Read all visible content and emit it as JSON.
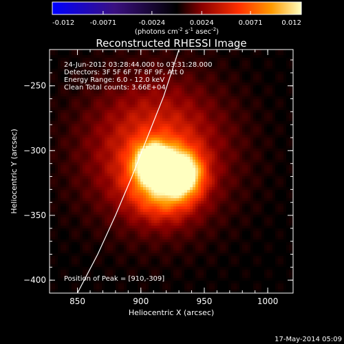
{
  "chart_data": {
    "type": "heatmap",
    "title": "Reconstructed RHESSI Image",
    "xlabel": "Heliocentric X (arcsec)",
    "ylabel": "Heliocentric Y (arcsec)",
    "xlim": [
      828,
      1020
    ],
    "ylim": [
      -410,
      -222
    ],
    "x_ticks": [
      850,
      900,
      950,
      1000
    ],
    "y_ticks": [
      -400,
      -350,
      -300,
      -250
    ],
    "colorbar": {
      "range": [
        -0.012,
        0.012
      ],
      "ticks": [
        "-0.012",
        "-0.0071",
        "-0.0024",
        "0.0024",
        "0.0071",
        "0.012"
      ],
      "units_prefix": "(photons cm",
      "units_sup1": "-2",
      "units_mid1": " s",
      "units_sup2": "-1",
      "units_mid2": " asec",
      "units_sup3": "-2",
      "units_suffix": ")"
    },
    "annotations": [
      "24-Jun-2012 03:28:44.000 to 03:31:28.000",
      "Detectors: 3F 5F 6F 7F 8F 9F, Att 0",
      "Energy Range: 6.0 - 12.0 keV",
      "Clean     Total counts: 3.66E+04"
    ],
    "peak_label": "Position of Peak = [910,-309]",
    "peak": [
      910,
      -309
    ],
    "limb": [
      [
        850,
        -410
      ],
      [
        866,
        -380
      ],
      [
        880,
        -350
      ],
      [
        893,
        -320
      ],
      [
        905,
        -290
      ],
      [
        918,
        -258
      ],
      [
        930,
        -222
      ]
    ],
    "sources": [
      {
        "x": 910,
        "y": -309,
        "amp": 1.0,
        "sigma": 9
      },
      {
        "x": 931,
        "y": -318,
        "amp": 0.78,
        "sigma": 11
      },
      {
        "x": 918,
        "y": -325,
        "amp": 0.55,
        "sigma": 18
      },
      {
        "x": 912,
        "y": -300,
        "amp": 0.45,
        "sigma": 40
      }
    ],
    "colormap": [
      "#0000ff",
      "#3a1080",
      "#000000",
      "#8a0000",
      "#ff3000",
      "#ff9a00",
      "#ffffc0"
    ]
  },
  "footer": {
    "timestamp": "17-May-2014 05:09"
  }
}
